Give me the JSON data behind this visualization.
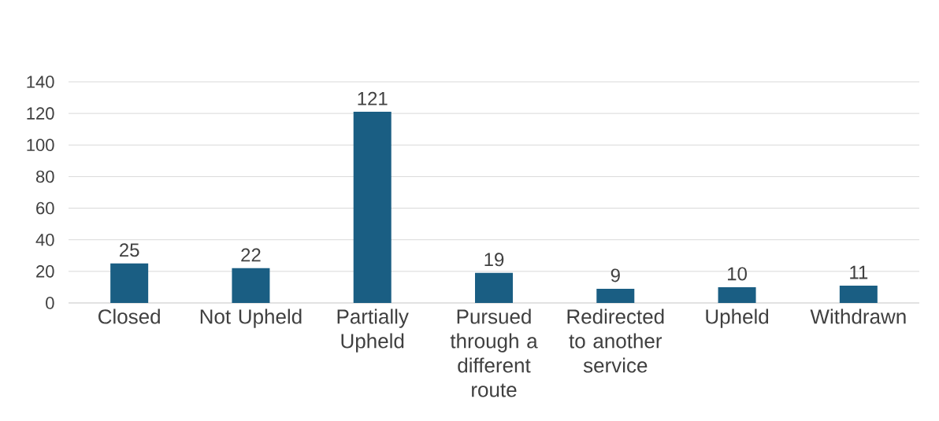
{
  "chart_data": {
    "type": "bar",
    "categories": [
      "Closed",
      "Not Upheld",
      "Partially Upheld",
      "Pursued through a different route",
      "Redirected to another service",
      "Upheld",
      "Withdrawn"
    ],
    "values": [
      25,
      22,
      121,
      19,
      9,
      10,
      11
    ],
    "color": "#1a5e83",
    "ylim": [
      0,
      140
    ],
    "yticks": [
      0,
      20,
      40,
      60,
      80,
      100,
      120,
      140
    ],
    "grid": "y",
    "data_labels": true
  }
}
